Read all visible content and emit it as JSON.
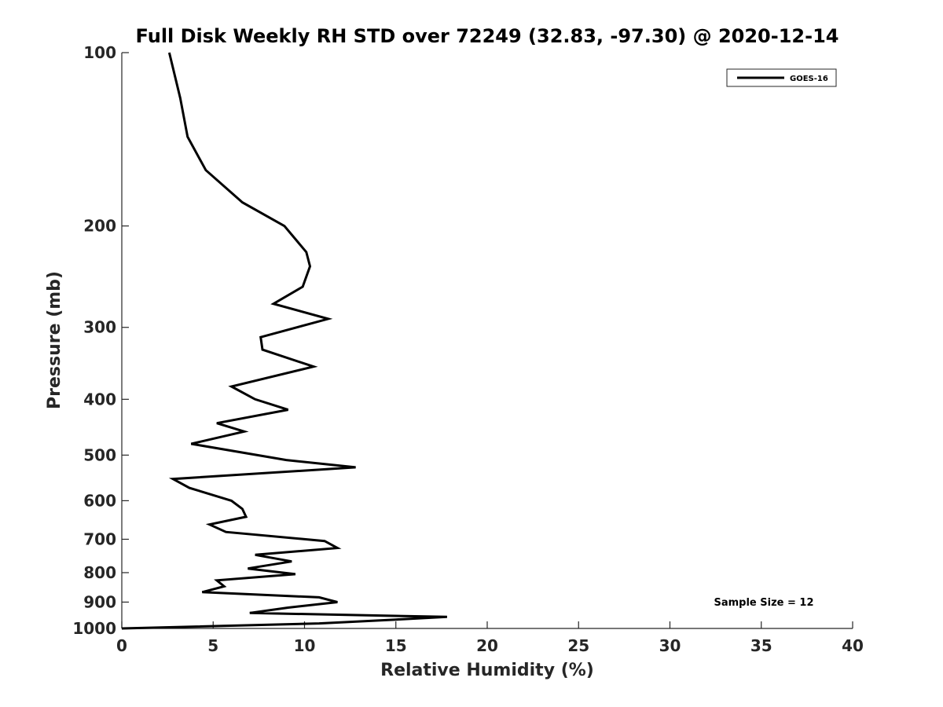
{
  "chart_data": {
    "type": "line",
    "title": "Full Disk Weekly RH STD over 72249 (32.83, -97.30) @ 2020-12-14",
    "xlabel": "Relative Humidity (%)",
    "ylabel": "Pressure (mb)",
    "xlim": [
      0,
      40
    ],
    "ylim": [
      100,
      1000
    ],
    "y_scale": "log",
    "y_inverted": true,
    "grid": false,
    "legend_position": "top-right",
    "x_ticks": [
      0,
      5,
      10,
      15,
      20,
      25,
      30,
      35,
      40
    ],
    "y_ticks": [
      100,
      200,
      300,
      400,
      500,
      600,
      700,
      800,
      900,
      1000
    ],
    "series": [
      {
        "name": "GOES-16",
        "color": "#000000",
        "x": [
          2.6,
          3.2,
          3.6,
          4.6,
          6.6,
          8.9,
          10.1,
          10.3,
          9.9,
          8.3,
          11.3,
          7.6,
          7.7,
          10.5,
          6.0,
          7.3,
          9.1,
          5.2,
          6.7,
          3.8,
          9.0,
          12.8,
          2.8,
          3.7,
          6.0,
          6.6,
          6.8,
          4.8,
          5.7,
          11.1,
          11.8,
          7.3,
          9.3,
          6.9,
          9.5,
          5.2,
          5.6,
          4.4,
          10.8,
          11.8,
          9.1,
          7.0,
          17.8,
          15.0,
          10.8,
          0.0
        ],
        "y": [
          100,
          120,
          140,
          160,
          182,
          200,
          222,
          235,
          255,
          273,
          290,
          312,
          328,
          351,
          380,
          400,
          417,
          440,
          455,
          478,
          510,
          525,
          550,
          570,
          600,
          620,
          640,
          660,
          680,
          705,
          725,
          745,
          765,
          787,
          805,
          825,
          845,
          865,
          883,
          900,
          920,
          940,
          955,
          965,
          980,
          1000
        ]
      }
    ],
    "legend": [
      "GOES-16"
    ],
    "annotations": [
      "Sample Size = 12"
    ]
  }
}
